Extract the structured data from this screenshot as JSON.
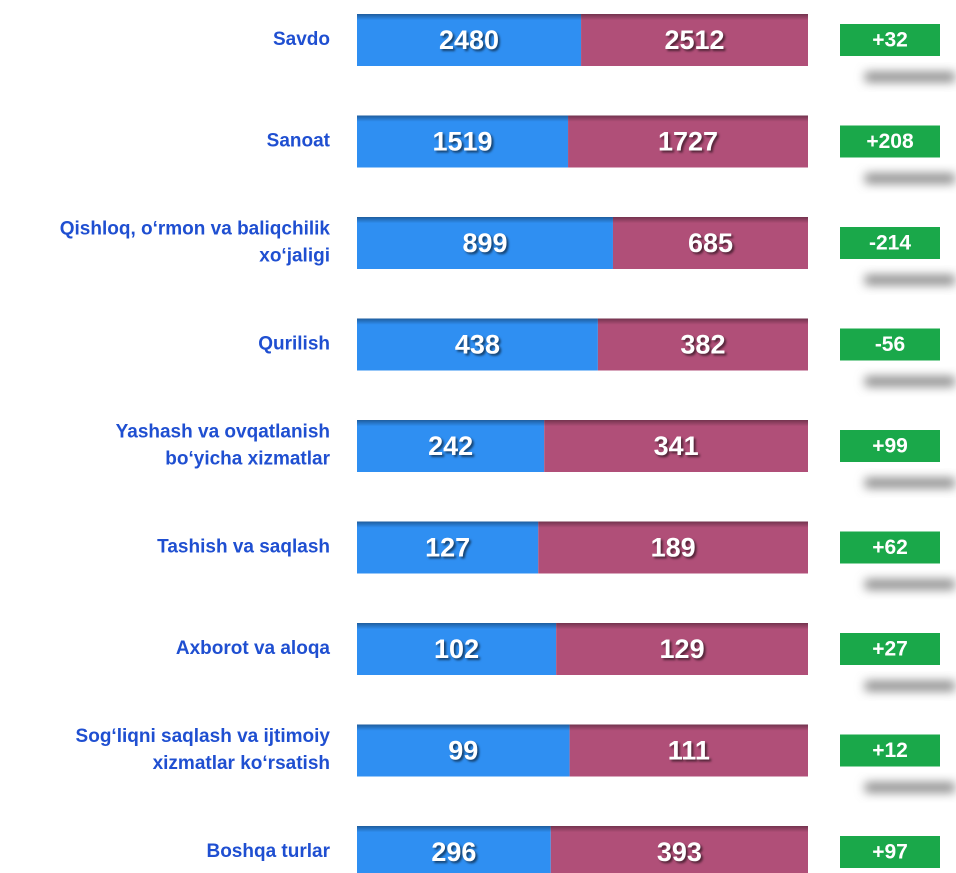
{
  "chart_data": {
    "type": "stacked-share-bar",
    "categories": [
      [
        "Savdo"
      ],
      [
        "Sanoat"
      ],
      [
        "Qishloq, o‘rmon va baliqchilik",
        "xo‘jaligi"
      ],
      [
        "Qurilish"
      ],
      [
        "Yashash va ovqatlanish",
        "bo‘yicha xizmatlar"
      ],
      [
        "Tashish va saqlash"
      ],
      [
        "Axborot va aloqa"
      ],
      [
        "Sog‘liqni saqlash va ijtimoiy",
        "xizmatlar ko‘rsatish"
      ],
      [
        "Boshqa turlar"
      ]
    ],
    "series": [
      {
        "color": "#2f8ff2",
        "values": [
          2480,
          1519,
          899,
          438,
          242,
          127,
          102,
          99,
          296
        ]
      },
      {
        "color": "#b04f78",
        "values": [
          2512,
          1727,
          685,
          382,
          341,
          189,
          129,
          111,
          393
        ]
      }
    ],
    "differences": {
      "color": "#1aa84a",
      "values": [
        32,
        208,
        -214,
        -56,
        99,
        62,
        27,
        12,
        97
      ],
      "value_labels": [
        "+32",
        "+208",
        "-214",
        "-56",
        "+99",
        "+62",
        "+27",
        "+12",
        "+97"
      ]
    }
  }
}
